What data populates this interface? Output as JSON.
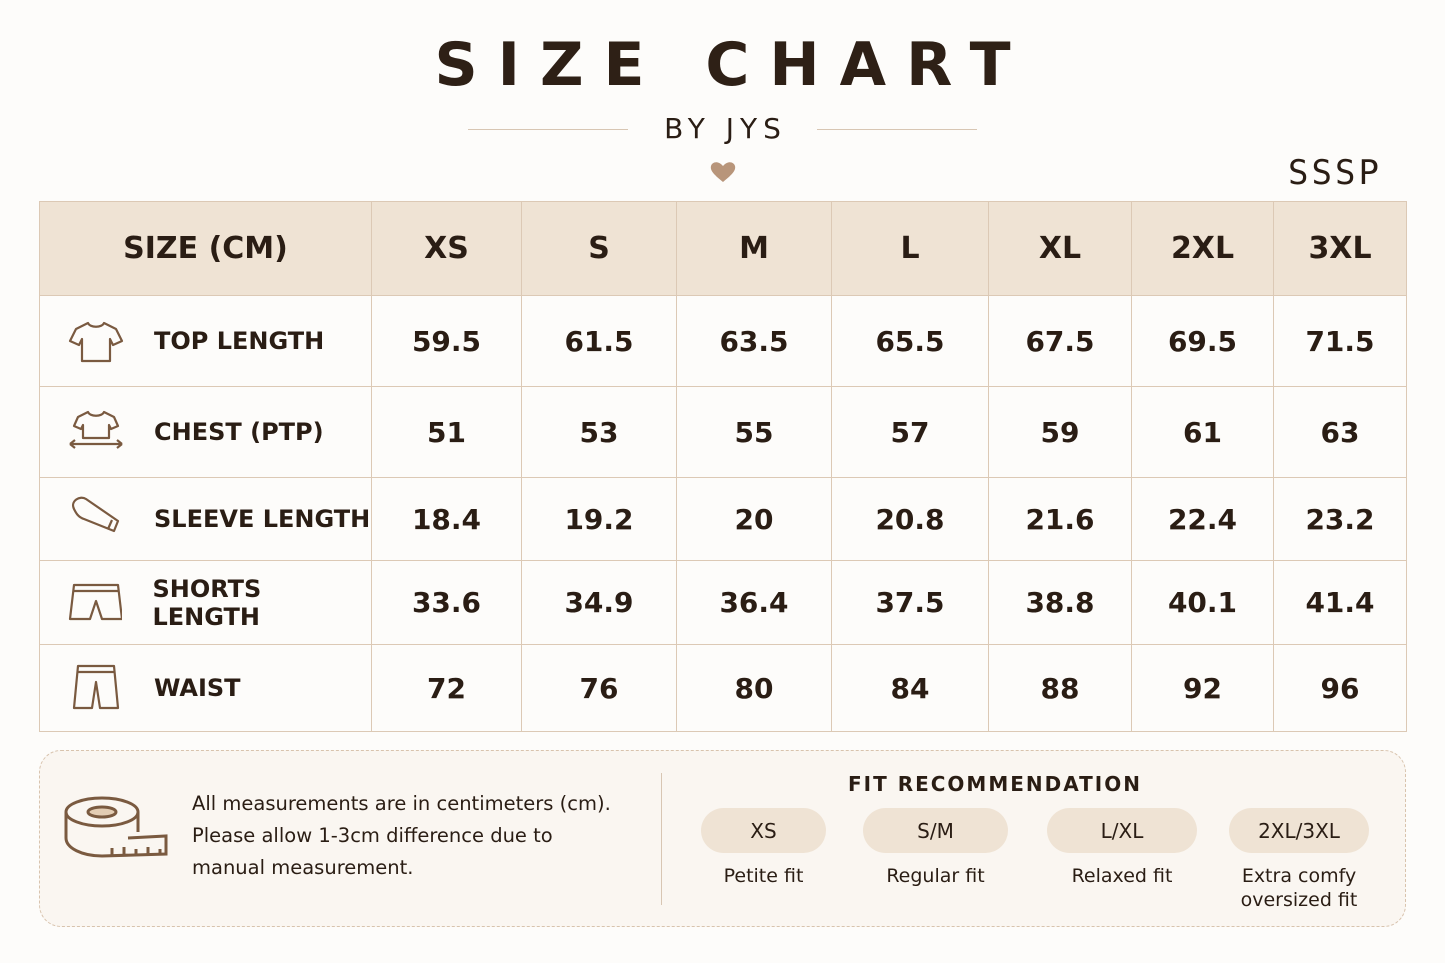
{
  "header": {
    "title": "SIZE CHART",
    "subtitle": "BY JYS",
    "brand": "SSSP"
  },
  "table": {
    "header": [
      "SIZE (CM)",
      "XS",
      "S",
      "M",
      "L",
      "XL",
      "2XL",
      "3XL"
    ],
    "rows": [
      [
        "TOP LENGTH",
        59.5,
        61.5,
        63.5,
        65.5,
        67.5,
        69.5,
        71.5
      ],
      [
        "CHEST (PTP)",
        51,
        53,
        55,
        57,
        59,
        61,
        63
      ],
      [
        "SLEEVE LENGTH",
        18.4,
        19.2,
        20,
        20.8,
        21.6,
        22.4,
        23.2
      ],
      [
        "SHORTS LENGTH",
        33.6,
        34.9,
        36.4,
        37.5,
        38.8,
        40.1,
        41.4
      ],
      [
        "WAIST",
        72,
        76,
        80,
        84,
        88,
        92,
        96
      ]
    ]
  },
  "note": {
    "lines": [
      "All measurements are in centimeters (cm).",
      "Please allow 1-3cm difference due to",
      "manual measurement."
    ]
  },
  "fit": {
    "title": "FIT RECOMMENDATION",
    "items": [
      {
        "size": "XS",
        "desc": "Petite fit"
      },
      {
        "size": "S/M",
        "desc": "Regular fit"
      },
      {
        "size": "L/XL",
        "desc": "Relaxed fit"
      },
      {
        "size": "2XL/3XL",
        "desc": "Extra comfy oversized fit"
      }
    ]
  }
}
